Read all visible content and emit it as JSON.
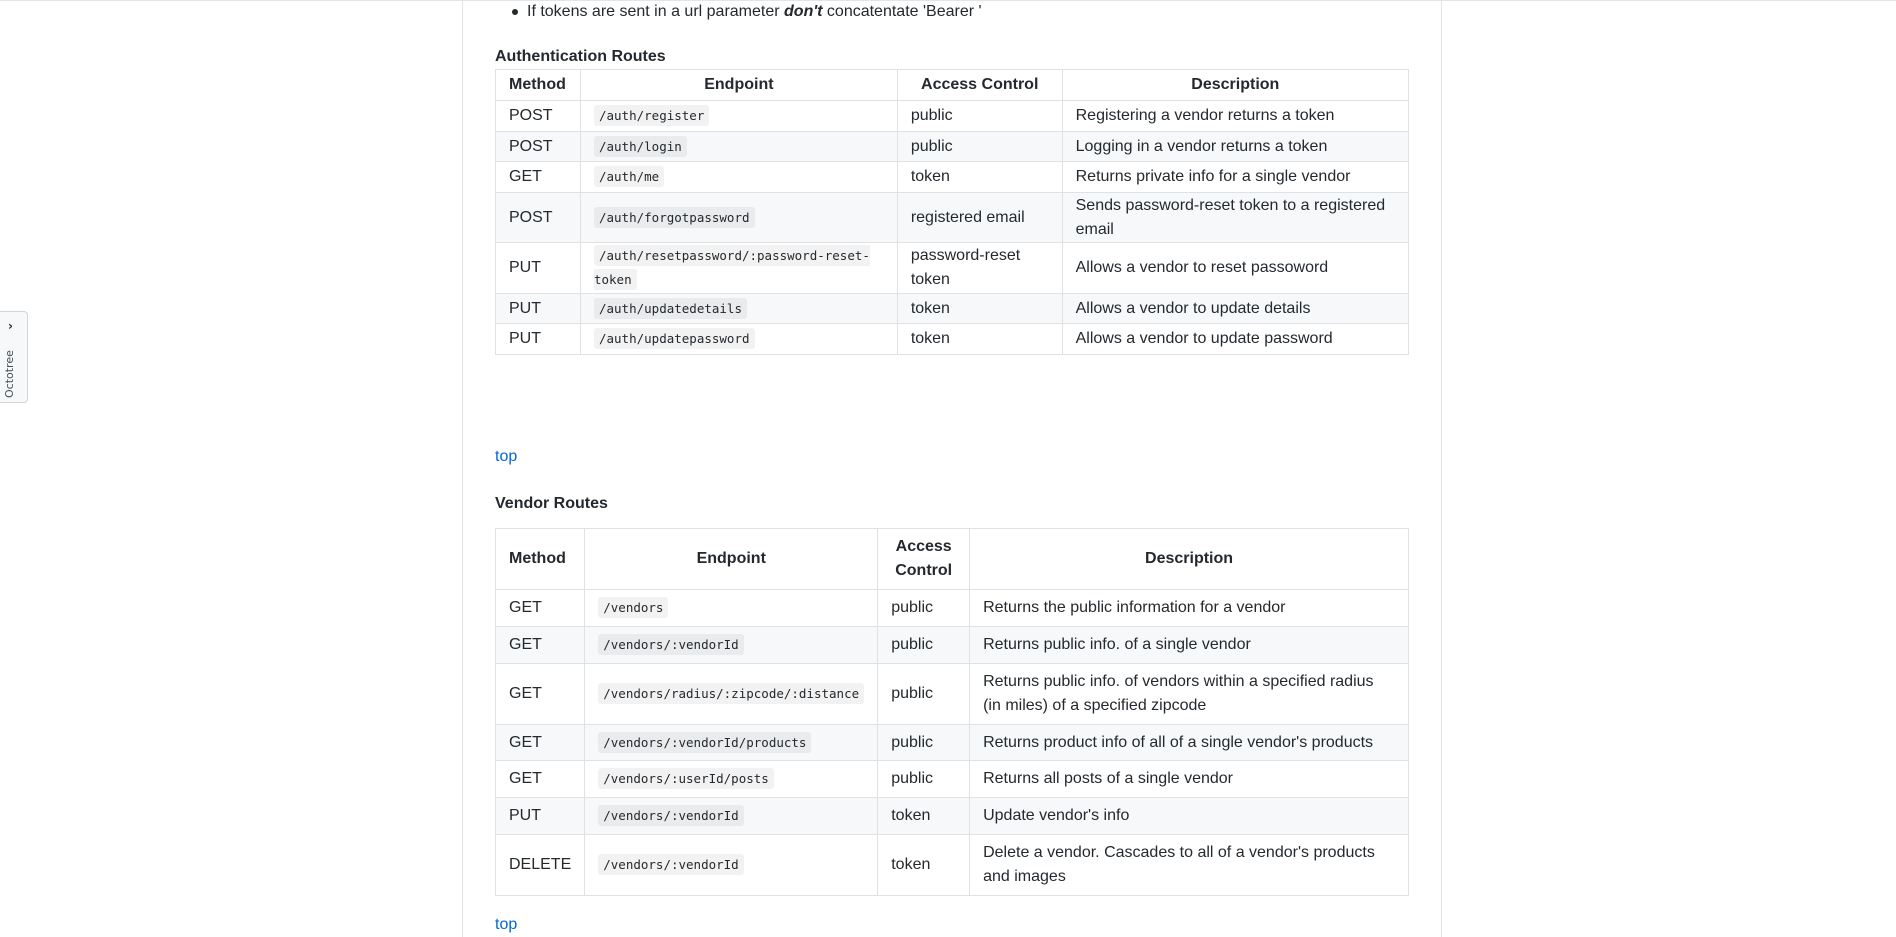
{
  "octotree": {
    "label": "Octotree",
    "chevron": "chevron-right-icon"
  },
  "bullet": {
    "prefix": "If tokens are sent in a url parameter ",
    "emphasis": "don't",
    "suffix": " concatentate 'Bearer '"
  },
  "auth": {
    "heading": "Authentication Routes",
    "headers": [
      "Method",
      "Endpoint",
      "Access Control",
      "Description"
    ],
    "rows": [
      {
        "method": "POST",
        "endpoint": "/auth/register",
        "access": "public",
        "description": "Registering a vendor returns a token"
      },
      {
        "method": "POST",
        "endpoint": "/auth/login",
        "access": "public",
        "description": "Logging in a vendor returns a token"
      },
      {
        "method": "GET",
        "endpoint": "/auth/me",
        "access": "token",
        "description": "Returns private info for a single vendor"
      },
      {
        "method": "POST",
        "endpoint": "/auth/forgotpassword",
        "access": "registered email",
        "description": "Sends password-reset token to a registered email"
      },
      {
        "method": "PUT",
        "endpoint": "/auth/resetpassword/:password-reset-token",
        "access": "password-reset token",
        "description": "Allows a vendor to reset passoword"
      },
      {
        "method": "PUT",
        "endpoint": "/auth/updatedetails",
        "access": "token",
        "description": "Allows a vendor to update details"
      },
      {
        "method": "PUT",
        "endpoint": "/auth/updatepassword",
        "access": "token",
        "description": "Allows a vendor to update password"
      }
    ],
    "top_link": "top"
  },
  "vendor": {
    "heading": "Vendor Routes",
    "headers": [
      "Method",
      "Endpoint",
      "Access Control",
      "Description"
    ],
    "rows": [
      {
        "method": "GET",
        "endpoint": "/vendors",
        "access": "public",
        "description": "Returns the public information for a vendor"
      },
      {
        "method": "GET",
        "endpoint": "/vendors/:vendorId",
        "access": "public",
        "description": "Returns public info. of a single vendor"
      },
      {
        "method": "GET",
        "endpoint": "/vendors/radius/:zipcode/:distance",
        "access": "public",
        "description": "Returns public info. of vendors within a specified radius (in miles) of a specified zipcode"
      },
      {
        "method": "GET",
        "endpoint": "/vendors/:vendorId/products",
        "access": "public",
        "description": "Returns product info of all of a single vendor's products"
      },
      {
        "method": "GET",
        "endpoint": "/vendors/:userId/posts",
        "access": "public",
        "description": "Returns all posts of a single vendor"
      },
      {
        "method": "PUT",
        "endpoint": "/vendors/:vendorId",
        "access": "token",
        "description": "Update vendor's info"
      },
      {
        "method": "DELETE",
        "endpoint": "/vendors/:vendorId",
        "access": "token",
        "description": "Delete a vendor. Cascades to all of a vendor's products and images"
      }
    ],
    "top_link": "top"
  }
}
